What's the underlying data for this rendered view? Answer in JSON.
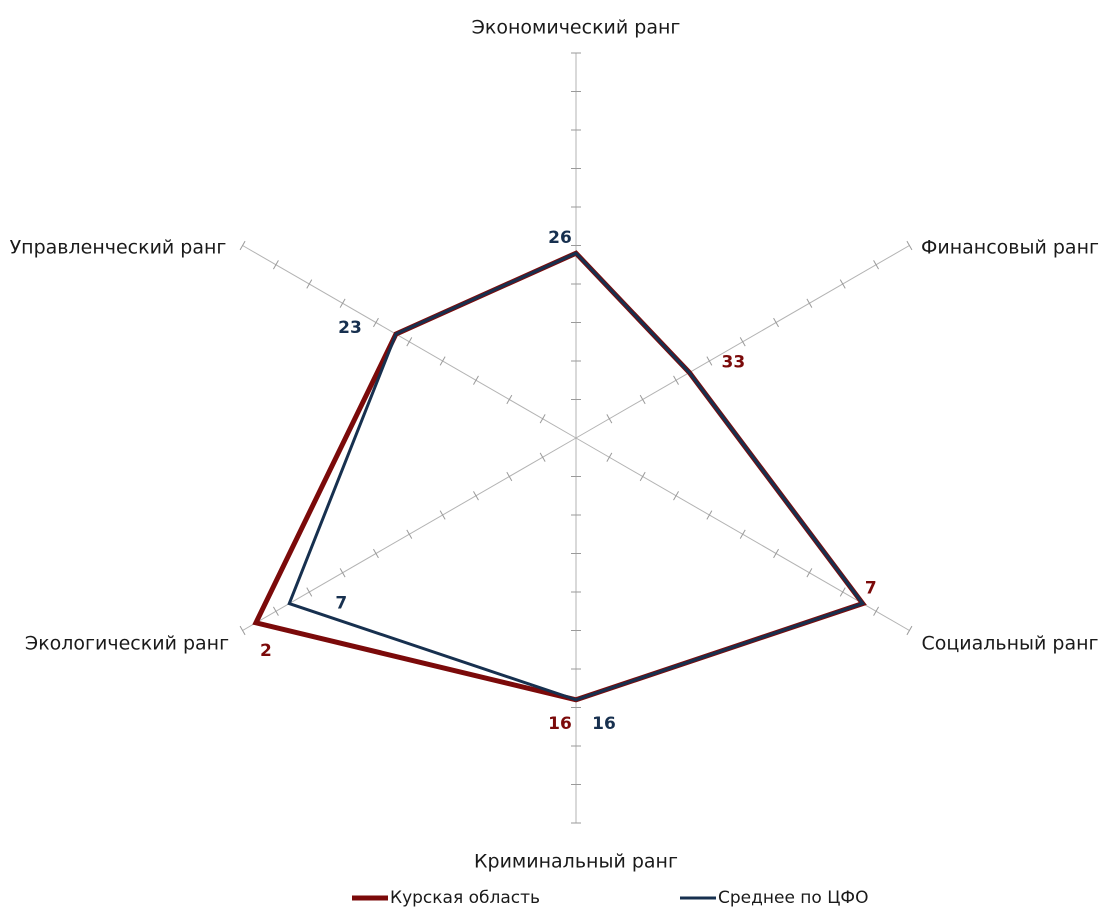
{
  "chart_data": {
    "type": "radar",
    "title": "",
    "axes": [
      "Экономический ранг",
      "Финансовый ранг",
      "Социальный ранг",
      "Криминальный ранг",
      "Экологический ранг",
      "Управленческий ранг"
    ],
    "scale": {
      "center": 0,
      "max": 50,
      "ticks": 10
    },
    "series": [
      {
        "name": "Курская область",
        "values": [
          26,
          33,
          7,
          16,
          2,
          23
        ],
        "color": "#7b0a0a",
        "labels": [
          "",
          "33",
          "7",
          "16",
          "2",
          ""
        ]
      },
      {
        "name": "Среднее по ЦФО",
        "values": [
          26,
          33,
          7,
          16,
          7,
          23
        ],
        "color": "#17304f",
        "labels": [
          "26",
          "",
          "",
          "16",
          "7",
          "23"
        ]
      }
    ],
    "legend_position": "bottom",
    "grid": false
  }
}
